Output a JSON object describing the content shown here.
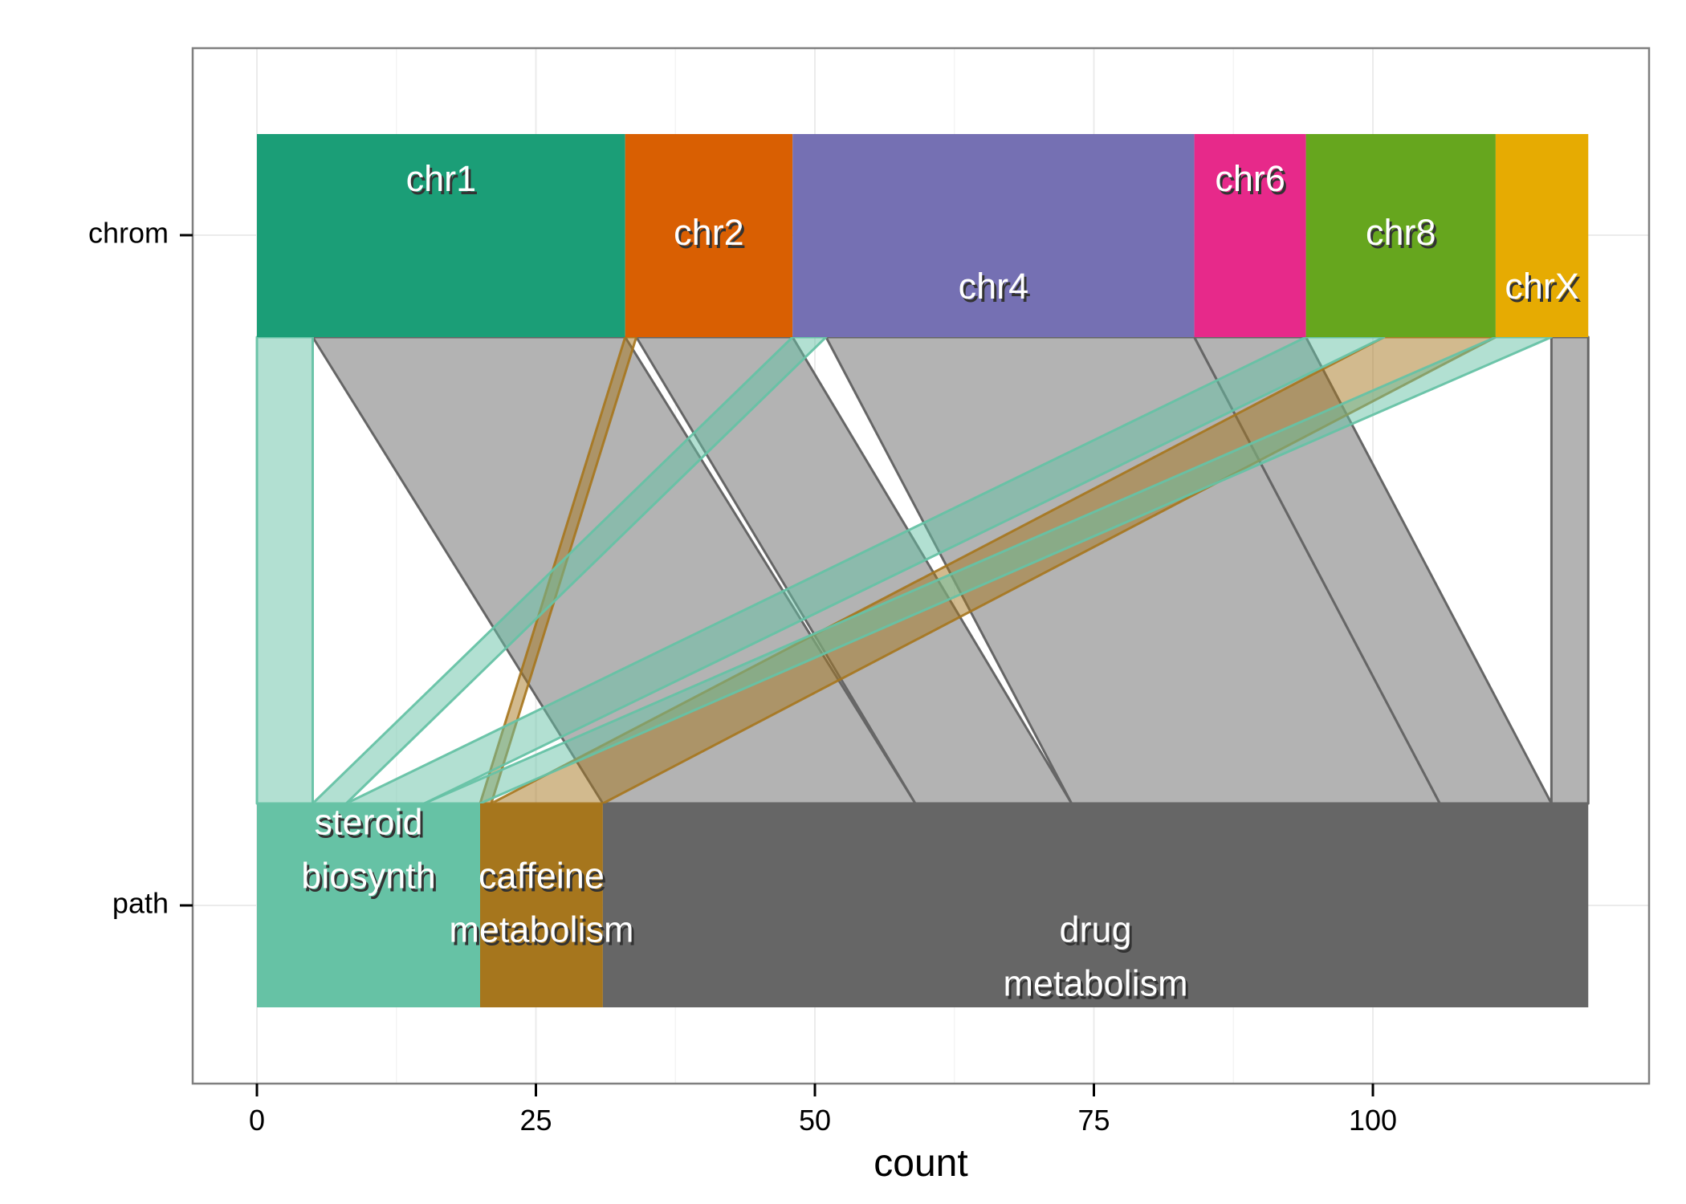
{
  "chart_data": {
    "type": "alluvial",
    "xlabel": "count",
    "axes": [
      "chrom",
      "path"
    ],
    "xticks": [
      0,
      25,
      50,
      75,
      100
    ],
    "xlim": [
      -6,
      124
    ],
    "grid": true,
    "legend": "none",
    "chrom_strata": [
      {
        "label": "chr1",
        "count": 33,
        "color": "#1b9e77",
        "label_rows": [
          -1
        ]
      },
      {
        "label": "chr2",
        "count": 15,
        "color": "#d95f02",
        "label_rows": [
          0
        ]
      },
      {
        "label": "chr4",
        "count": 36,
        "color": "#7570b3",
        "label_rows": [
          1
        ]
      },
      {
        "label": "chr6",
        "count": 10,
        "color": "#e7298a",
        "label_rows": [
          -1
        ]
      },
      {
        "label": "chr8",
        "count": 17,
        "color": "#66a61e",
        "label_rows": [
          0
        ]
      },
      {
        "label": "chrX",
        "count": 8.3,
        "color": "#e6ab02",
        "label_rows": [
          1
        ]
      }
    ],
    "path_strata": [
      {
        "label": "steroid\nbiosynth",
        "lines": [
          "steroid",
          "biosynth"
        ],
        "count": 20,
        "color": "#66c2a5",
        "label_rows": [
          -1.5,
          -0.5
        ]
      },
      {
        "label": "caffeine\nmetabolism",
        "lines": [
          "caffeine",
          "metabolism"
        ],
        "count": 11,
        "color": "#a6761d",
        "label_rows": [
          -0.5,
          0.5
        ]
      },
      {
        "label": "drug\nmetabolism",
        "lines": [
          "drug",
          "metabolism"
        ],
        "count": 88.3,
        "color": "#666666",
        "label_rows": [
          0.5,
          1.5
        ]
      }
    ],
    "flows": [
      {
        "chrom": "chr1",
        "path": "steroid\nbiosynth",
        "count": 5
      },
      {
        "chrom": "chr1",
        "path": "drug\nmetabolism",
        "count": 28
      },
      {
        "chrom": "chr2",
        "path": "caffeine\nmetabolism",
        "count": 1
      },
      {
        "chrom": "chr2",
        "path": "drug\nmetabolism",
        "count": 14
      },
      {
        "chrom": "chr4",
        "path": "steroid\nbiosynth",
        "count": 3
      },
      {
        "chrom": "chr4",
        "path": "drug\nmetabolism",
        "count": 33
      },
      {
        "chrom": "chr6",
        "path": "drug\nmetabolism",
        "count": 10
      },
      {
        "chrom": "chr8",
        "path": "steroid\nbiosynth",
        "count": 7
      },
      {
        "chrom": "chr8",
        "path": "caffeine\nmetabolism",
        "count": 10
      },
      {
        "chrom": "chr8",
        "path": "drug\nmetabolism",
        "count": 0
      },
      {
        "chrom": "chrX",
        "path": "steroid\nbiosynth",
        "count": 5
      },
      {
        "chrom": "chrX",
        "path": "drug\nmetabolism",
        "count": 3.3
      }
    ]
  }
}
